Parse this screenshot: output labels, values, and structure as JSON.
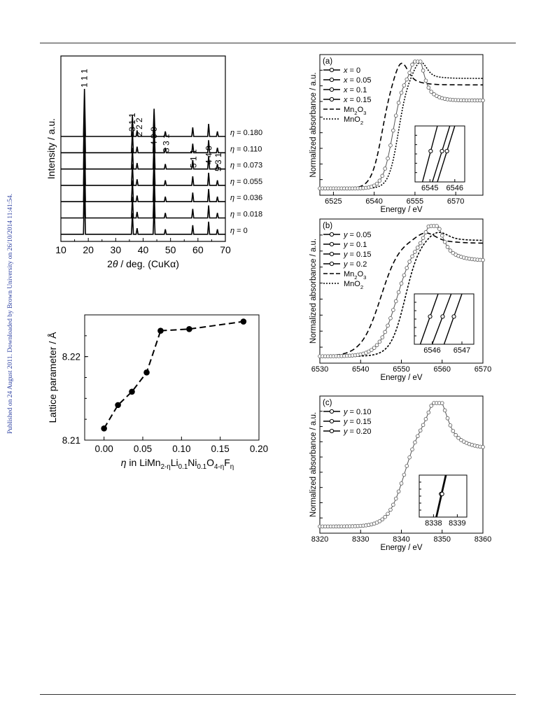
{
  "page": {
    "sidebar_note": "Published on 24 August 2011. Downloaded by Brown University on 26/10/2014 11:41:54."
  },
  "chart_data": [
    {
      "id": "xrd",
      "type": "line",
      "xlabel_parts": [
        "2",
        "θ",
        " / deg. (CuK",
        "α",
        ")"
      ],
      "ylabel": "Intensity / a.u.",
      "xlim": [
        10,
        70
      ],
      "xticks": [
        10,
        20,
        30,
        40,
        50,
        60,
        70
      ],
      "peak_positions": [
        18.6,
        36.1,
        37.8,
        44.0,
        48.1,
        58.1,
        63.9,
        67.1
      ],
      "peak_heights": [
        1.0,
        0.42,
        0.12,
        0.55,
        0.1,
        0.18,
        0.25,
        0.1
      ],
      "peak_labels": [
        {
          "x": 18.6,
          "text": "1 1 1"
        },
        {
          "x": 36.1,
          "text": "3 1 1"
        },
        {
          "x": 38.6,
          "text": "2 2 2"
        },
        {
          "x": 44.0,
          "text": "4 0 0"
        },
        {
          "x": 48.4,
          "text": "3 3 1"
        },
        {
          "x": 58.4,
          "text": "5 1 1"
        },
        {
          "x": 64.0,
          "text": "4 4 0"
        },
        {
          "x": 67.4,
          "text": "5 3 1"
        }
      ],
      "series": [
        {
          "name": "η = 0.180",
          "value": "0.180"
        },
        {
          "name": "η = 0.110",
          "value": "0.110"
        },
        {
          "name": "η = 0.073",
          "value": "0.073"
        },
        {
          "name": "η = 0.055",
          "value": "0.055"
        },
        {
          "name": "η = 0.036",
          "value": "0.036"
        },
        {
          "name": "η = 0.018",
          "value": "0.018"
        },
        {
          "name": "η = 0",
          "value": "0"
        }
      ],
      "eta_symbol": "η",
      "eta_eq": " = "
    },
    {
      "id": "lattice",
      "type": "scatter",
      "ylabel": "Lattice parameter / Å",
      "xlabel_parts": [
        "η",
        " in LiMn",
        "2-η",
        "Li",
        "0.1",
        "Ni",
        "0.1",
        "O",
        "4-η",
        "F",
        "η"
      ],
      "xlim": [
        -0.025,
        0.2
      ],
      "ylim": [
        8.21,
        8.225
      ],
      "xticks": [
        "0.00",
        "0.05",
        "0.10",
        "0.15",
        "0.20"
      ],
      "yticks": [
        "8.21",
        "8.22"
      ],
      "x": [
        0.0,
        0.018,
        0.036,
        0.055,
        0.073,
        0.11,
        0.18
      ],
      "y": [
        8.2114,
        8.2142,
        8.2158,
        8.2181,
        8.2231,
        8.2233,
        8.2242
      ]
    },
    {
      "id": "xanes-a",
      "type": "line",
      "panel": "(a)",
      "xlabel": "Energy / eV",
      "ylabel": "Normalized absorbance / a.u.",
      "xlim": [
        6520,
        6580
      ],
      "xticks": [
        6525,
        6540,
        6555,
        6570
      ],
      "legend": [
        {
          "var": "x",
          "val": " = 0",
          "style": "open-marker"
        },
        {
          "var": "x",
          "val": " = 0.05",
          "style": "open-marker"
        },
        {
          "var": "x",
          "val": " = 0.1",
          "style": "open-marker"
        },
        {
          "var": "x",
          "val": " = 0.15",
          "style": "open-marker"
        },
        {
          "pre": "Mn",
          "sub": "2",
          "post": "O",
          "sub2": "3",
          "style": "dashed"
        },
        {
          "pre": "MnO",
          "sub": "2",
          "style": "dotted"
        }
      ],
      "inset_xticks": [
        "6545",
        "6546"
      ]
    },
    {
      "id": "xanes-b",
      "type": "line",
      "panel": "(b)",
      "xlabel": "Energy / eV",
      "ylabel": "Normalized absorbance / a.u.",
      "xlim": [
        6530,
        6570
      ],
      "xticks": [
        6530,
        6540,
        6550,
        6560,
        6570
      ],
      "legend": [
        {
          "var": "y",
          "val": " = 0.05",
          "style": "open-marker"
        },
        {
          "var": "y",
          "val": " = 0.1",
          "style": "open-marker"
        },
        {
          "var": "y",
          "val": " = 0.15",
          "style": "open-marker"
        },
        {
          "var": "y",
          "val": " = 0.2",
          "style": "open-marker"
        },
        {
          "pre": "Mn",
          "sub": "2",
          "post": "O",
          "sub2": "3",
          "style": "dashed"
        },
        {
          "pre": "MnO",
          "sub": "2",
          "style": "dotted"
        }
      ],
      "inset_xticks": [
        "6546",
        "6547"
      ]
    },
    {
      "id": "xanes-c",
      "type": "line",
      "panel": "(c)",
      "xlabel": "Energy / eV",
      "ylabel": "Normalized absorbance / a.u.",
      "xlim": [
        8320,
        8360
      ],
      "xticks": [
        8320,
        8330,
        8340,
        8350,
        8360
      ],
      "legend": [
        {
          "var": "y",
          "val": " = 0.10",
          "style": "open-marker"
        },
        {
          "var": "y",
          "val": " = 0.15",
          "style": "open-marker"
        },
        {
          "var": "y",
          "val": " = 0.20",
          "style": "open-marker"
        }
      ],
      "inset_xticks": [
        "8338",
        "8339"
      ]
    }
  ]
}
